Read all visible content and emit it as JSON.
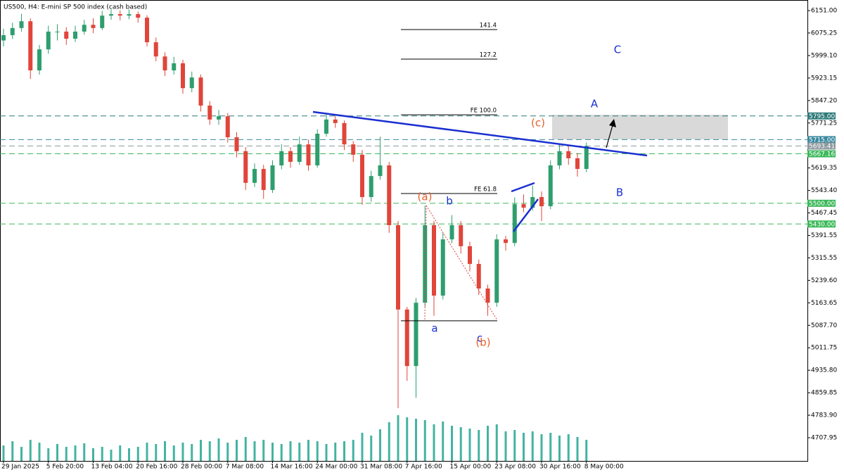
{
  "chart_data": {
    "type": "candlestick",
    "title": "US500, H4:  E-mini SP 500 index (cash based)",
    "ylim": [
      4629.5,
      6182
    ],
    "yticks": [
      {
        "value": 6151,
        "label": "6151.00"
      },
      {
        "value": 6075.25,
        "label": "6075.25"
      },
      {
        "value": 5999.1,
        "label": "5999.10"
      },
      {
        "value": 5923.15,
        "label": "5923.15"
      },
      {
        "value": 5847.2,
        "label": "5847.20"
      },
      {
        "value": 5771.25,
        "label": "5771.25"
      },
      {
        "value": 5619.35,
        "label": "5619.35"
      },
      {
        "value": 5543.4,
        "label": "5543.40"
      },
      {
        "value": 5467.45,
        "label": "5467.45"
      },
      {
        "value": 5391.55,
        "label": "5391.55"
      },
      {
        "value": 5315.55,
        "label": "5315.55"
      },
      {
        "value": 5239.6,
        "label": "5239.60"
      },
      {
        "value": 5163.65,
        "label": "5163.65"
      },
      {
        "value": 5087.7,
        "label": "5087.70"
      },
      {
        "value": 5011.75,
        "label": "5011.75"
      },
      {
        "value": 4935.8,
        "label": "4935.80"
      },
      {
        "value": 4859.85,
        "label": "4859.85"
      },
      {
        "value": 4783.9,
        "label": "4783.90"
      },
      {
        "value": 4707.95,
        "label": "4707.95"
      }
    ],
    "categories": [
      "29 Jan 2025",
      null,
      null,
      null,
      null,
      "5 Feb 20:00",
      null,
      null,
      null,
      null,
      "13 Feb 04:00",
      null,
      null,
      null,
      null,
      "20 Feb 16:00",
      null,
      null,
      null,
      null,
      "28 Feb 00:00",
      null,
      null,
      null,
      null,
      "7 Mar 08:00",
      null,
      null,
      null,
      null,
      "14 Mar 16:00",
      null,
      null,
      null,
      null,
      "24 Mar 00:00",
      null,
      null,
      null,
      null,
      "31 Mar 08:00",
      null,
      null,
      null,
      null,
      "7 Apr 16:00",
      null,
      null,
      null,
      null,
      "15 Apr 00:00",
      null,
      null,
      null,
      null,
      "23 Apr 08:00",
      null,
      null,
      null,
      null,
      "30 Apr 16:00",
      null,
      null,
      null,
      null,
      "8 May 00:00"
    ],
    "open": [
      6050,
      6068,
      6092,
      6115,
      5949,
      6020,
      6080,
      6080,
      6056,
      6080,
      6103,
      6092,
      6134,
      6139,
      6134,
      6139,
      6127,
      6044,
      5996,
      5949,
      5973,
      5889,
      5925,
      5830,
      5783,
      5794,
      5723,
      5676,
      5569,
      5616,
      5545,
      5628,
      5676,
      5640,
      5699,
      5628,
      5735,
      5783,
      5771,
      5699,
      5664,
      5521,
      5592,
      5628,
      5426,
      5141,
      4950,
      5164,
      5426,
      5188,
      5378,
      5426,
      5355,
      5295,
      5212,
      5164,
      5378,
      5366,
      5497,
      5485,
      5521,
      5490,
      5628,
      5676,
      5652,
      5616
    ],
    "high": [
      6090,
      6110,
      6140,
      6125,
      6035,
      6100,
      6105,
      6095,
      6100,
      6120,
      6125,
      6150,
      6155,
      6152,
      6155,
      6148,
      6135,
      6060,
      6010,
      5995,
      5985,
      5945,
      5935,
      5845,
      5815,
      5805,
      5740,
      5690,
      5635,
      5630,
      5645,
      5700,
      5690,
      5725,
      5715,
      5750,
      5800,
      5795,
      5780,
      5710,
      5680,
      5610,
      5725,
      5640,
      5440,
      5150,
      5180,
      5492,
      5440,
      5400,
      5460,
      5440,
      5370,
      5310,
      5225,
      5395,
      5390,
      5520,
      5530,
      5560,
      5540,
      5645,
      5700,
      5695,
      5670,
      5705
    ],
    "low": [
      6030,
      6055,
      6080,
      5920,
      5935,
      6005,
      6050,
      6035,
      6045,
      6070,
      6075,
      6085,
      6120,
      6118,
      6122,
      6110,
      6030,
      5980,
      5930,
      5935,
      5870,
      5875,
      5810,
      5765,
      5765,
      5705,
      5655,
      5545,
      5555,
      5515,
      5535,
      5615,
      5620,
      5630,
      5610,
      5620,
      5725,
      5755,
      5680,
      5640,
      5495,
      5505,
      5580,
      5400,
      4808,
      4900,
      4843,
      5150,
      5120,
      5175,
      5365,
      5330,
      5270,
      5190,
      5120,
      5150,
      5340,
      5355,
      5470,
      5475,
      5440,
      5480,
      5615,
      5630,
      5590,
      5605
    ],
    "close": [
      6068,
      6092,
      6115,
      5949,
      6020,
      6080,
      6080,
      6056,
      6080,
      6103,
      6092,
      6134,
      6139,
      6134,
      6139,
      6127,
      6044,
      5996,
      5949,
      5973,
      5889,
      5925,
      5830,
      5783,
      5794,
      5723,
      5676,
      5569,
      5616,
      5545,
      5628,
      5676,
      5640,
      5699,
      5628,
      5735,
      5783,
      5771,
      5699,
      5664,
      5521,
      5592,
      5628,
      5426,
      5141,
      4950,
      5164,
      5426,
      5188,
      5378,
      5426,
      5355,
      5295,
      5212,
      5164,
      5378,
      5366,
      5497,
      5485,
      5521,
      5490,
      5628,
      5676,
      5652,
      5616,
      5693.41
    ],
    "volume": [
      22,
      28,
      20,
      30,
      26,
      18,
      24,
      20,
      22,
      25,
      18,
      20,
      16,
      22,
      18,
      20,
      26,
      24,
      28,
      22,
      26,
      24,
      30,
      28,
      32,
      26,
      30,
      34,
      28,
      30,
      26,
      24,
      28,
      26,
      30,
      28,
      24,
      26,
      28,
      30,
      40,
      36,
      45,
      55,
      65,
      62,
      60,
      58,
      52,
      56,
      50,
      48,
      46,
      44,
      50,
      52,
      42,
      44,
      40,
      42,
      38,
      40,
      36,
      38,
      34,
      30
    ],
    "up_color": "#2e9e6e",
    "down_color": "#e0453a",
    "volume_color": "#43b3a3",
    "levels": [
      {
        "value": 5795,
        "label": "5795.00",
        "color": "#2f7a7a"
      },
      {
        "value": 5715,
        "label": "5715.00",
        "color": "#3a8aa0"
      },
      {
        "value": 5693.41,
        "label": "5693.41",
        "color": "#8e9aa0"
      },
      {
        "value": 5667.16,
        "label": "5667.16",
        "color": "#3cb85a"
      },
      {
        "value": 5500,
        "label": "5500.00",
        "color": "#3cb85a"
      },
      {
        "value": 5430,
        "label": "5430.00",
        "color": "#3cb85a"
      }
    ],
    "fib_levels": [
      {
        "label": "141.4",
        "value": 6086.8
      },
      {
        "label": "127.2",
        "value": 5987
      },
      {
        "label": "FE 100.0",
        "value": 5799
      },
      {
        "label": "FE 61.8",
        "value": 5533
      }
    ],
    "fib_base": 5103,
    "annotations": [
      "(a)",
      "b",
      "a",
      "c",
      "(b)",
      "(c)",
      "A",
      "B",
      "C"
    ]
  }
}
